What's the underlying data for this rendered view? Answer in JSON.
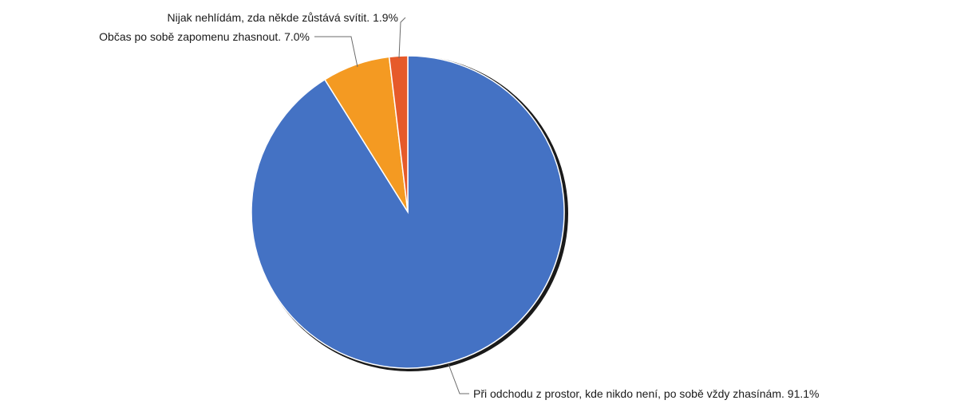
{
  "chart_data": {
    "type": "pie",
    "title": "",
    "slices": [
      {
        "label": "Při odchodu z prostor, kde nikdo není, po sobě vždy zhasínám. 91.1%",
        "value": 91.1,
        "color": "#4472c4"
      },
      {
        "label": "Občas po sobě zapomenu zhasnout. 7.0%",
        "value": 7.0,
        "color": "#f49a22"
      },
      {
        "label": "Nijak nehlídám, zda někde zůstává svítit. 1.9%",
        "value": 1.9,
        "color": "#e65a2a"
      }
    ]
  }
}
